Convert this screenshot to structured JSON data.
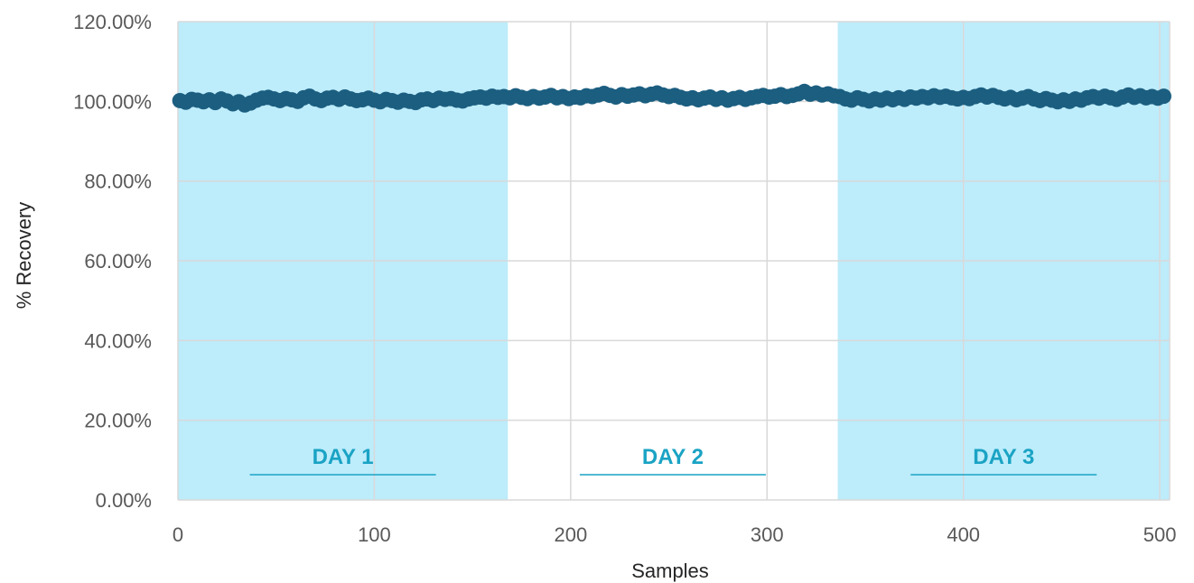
{
  "chart_data": {
    "type": "scatter",
    "title": "",
    "xlabel": "Samples",
    "ylabel": "% Recovery",
    "xlim": [
      0,
      505
    ],
    "ylim": [
      0,
      1.2
    ],
    "x_ticks": [
      0,
      100,
      200,
      300,
      400,
      500
    ],
    "x_tick_labels": [
      "0",
      "100",
      "200",
      "300",
      "400",
      "500"
    ],
    "y_ticks": [
      0,
      0.2,
      0.4,
      0.6,
      0.8,
      1.0,
      1.2
    ],
    "y_tick_labels": [
      "0.00%",
      "20.00%",
      "40.00%",
      "60.00%",
      "80.00%",
      "100.00%",
      "120.00%"
    ],
    "grid": true,
    "legend": "none",
    "bands": [
      {
        "label": "DAY 1",
        "x_start": 0,
        "x_end": 168,
        "shaded": true
      },
      {
        "label": "DAY 2",
        "x_start": 168,
        "x_end": 336,
        "shaded": false
      },
      {
        "label": "DAY 3",
        "x_start": 336,
        "x_end": 505,
        "shaded": true
      }
    ],
    "series": [
      {
        "values": [
          [
            1,
            1.002
          ],
          [
            4,
            0.998
          ],
          [
            7,
            1.005
          ],
          [
            10,
            1.003
          ],
          [
            13,
            0.999
          ],
          [
            16,
            1.004
          ],
          [
            19,
            0.997
          ],
          [
            22,
            1.006
          ],
          [
            25,
            1.001
          ],
          [
            28,
            0.994
          ],
          [
            31,
            0.999
          ],
          [
            34,
            0.991
          ],
          [
            37,
            0.996
          ],
          [
            40,
            1.003
          ],
          [
            43,
            1.008
          ],
          [
            46,
            1.01
          ],
          [
            49,
            1.006
          ],
          [
            52,
            1.002
          ],
          [
            55,
            1.007
          ],
          [
            58,
            1.004
          ],
          [
            61,
            1.0
          ],
          [
            64,
            1.009
          ],
          [
            67,
            1.013
          ],
          [
            70,
            1.006
          ],
          [
            73,
            1.002
          ],
          [
            76,
            1.008
          ],
          [
            79,
            1.01
          ],
          [
            82,
            1.005
          ],
          [
            85,
            1.011
          ],
          [
            88,
            1.006
          ],
          [
            91,
            1.002
          ],
          [
            94,
            1.004
          ],
          [
            97,
            1.008
          ],
          [
            100,
            1.003
          ],
          [
            103,
            0.999
          ],
          [
            106,
            1.005
          ],
          [
            109,
            1.002
          ],
          [
            112,
            0.998
          ],
          [
            115,
            1.003
          ],
          [
            118,
            1.0
          ],
          [
            121,
            0.997
          ],
          [
            124,
            1.004
          ],
          [
            127,
            1.006
          ],
          [
            130,
            1.002
          ],
          [
            133,
            1.008
          ],
          [
            136,
            1.005
          ],
          [
            139,
            1.007
          ],
          [
            142,
            1.003
          ],
          [
            145,
            1.001
          ],
          [
            148,
            1.006
          ],
          [
            151,
            1.009
          ],
          [
            154,
            1.011
          ],
          [
            157,
            1.008
          ],
          [
            160,
            1.013
          ],
          [
            163,
            1.01
          ],
          [
            166,
            1.012
          ],
          [
            169,
            1.009
          ],
          [
            172,
            1.014
          ],
          [
            175,
            1.01
          ],
          [
            178,
            1.007
          ],
          [
            181,
            1.012
          ],
          [
            184,
            1.008
          ],
          [
            187,
            1.011
          ],
          [
            190,
            1.015
          ],
          [
            193,
            1.009
          ],
          [
            196,
            1.012
          ],
          [
            199,
            1.007
          ],
          [
            202,
            1.011
          ],
          [
            205,
            1.009
          ],
          [
            208,
            1.014
          ],
          [
            211,
            1.012
          ],
          [
            214,
            1.016
          ],
          [
            217,
            1.02
          ],
          [
            220,
            1.015
          ],
          [
            223,
            1.011
          ],
          [
            226,
            1.017
          ],
          [
            229,
            1.013
          ],
          [
            232,
            1.016
          ],
          [
            235,
            1.019
          ],
          [
            238,
            1.014
          ],
          [
            241,
            1.018
          ],
          [
            244,
            1.021
          ],
          [
            247,
            1.016
          ],
          [
            250,
            1.012
          ],
          [
            253,
            1.015
          ],
          [
            256,
            1.01
          ],
          [
            259,
            1.006
          ],
          [
            262,
            1.009
          ],
          [
            265,
            1.004
          ],
          [
            268,
            1.008
          ],
          [
            271,
            1.011
          ],
          [
            274,
            1.005
          ],
          [
            277,
            1.009
          ],
          [
            280,
            1.003
          ],
          [
            283,
            1.007
          ],
          [
            286,
            1.01
          ],
          [
            289,
            1.005
          ],
          [
            292,
            1.009
          ],
          [
            295,
            1.012
          ],
          [
            298,
            1.015
          ],
          [
            301,
            1.011
          ],
          [
            304,
            1.013
          ],
          [
            307,
            1.017
          ],
          [
            310,
            1.012
          ],
          [
            313,
            1.015
          ],
          [
            316,
            1.019
          ],
          [
            319,
            1.025
          ],
          [
            322,
            1.018
          ],
          [
            325,
            1.021
          ],
          [
            328,
            1.016
          ],
          [
            331,
            1.019
          ],
          [
            334,
            1.014
          ],
          [
            337,
            1.012
          ],
          [
            340,
            1.006
          ],
          [
            343,
            1.003
          ],
          [
            346,
            1.009
          ],
          [
            349,
            1.005
          ],
          [
            352,
            1.001
          ],
          [
            355,
            1.006
          ],
          [
            358,
            1.003
          ],
          [
            361,
            1.008
          ],
          [
            364,
            1.004
          ],
          [
            367,
            1.009
          ],
          [
            370,
            1.005
          ],
          [
            373,
            1.011
          ],
          [
            376,
            1.008
          ],
          [
            379,
            1.012
          ],
          [
            382,
            1.009
          ],
          [
            385,
            1.014
          ],
          [
            388,
            1.01
          ],
          [
            391,
            1.013
          ],
          [
            394,
            1.009
          ],
          [
            397,
            1.006
          ],
          [
            400,
            1.01
          ],
          [
            403,
            1.007
          ],
          [
            406,
            1.012
          ],
          [
            409,
            1.016
          ],
          [
            412,
            1.011
          ],
          [
            415,
            1.015
          ],
          [
            418,
            1.01
          ],
          [
            421,
            1.006
          ],
          [
            424,
            1.01
          ],
          [
            427,
            1.004
          ],
          [
            430,
            1.008
          ],
          [
            433,
            1.012
          ],
          [
            436,
            1.006
          ],
          [
            439,
            1.002
          ],
          [
            442,
            1.007
          ],
          [
            445,
            1.003
          ],
          [
            448,
            0.999
          ],
          [
            451,
            1.004
          ],
          [
            454,
            1.0
          ],
          [
            457,
            1.006
          ],
          [
            460,
            1.003
          ],
          [
            463,
            1.009
          ],
          [
            466,
            1.012
          ],
          [
            469,
            1.008
          ],
          [
            472,
            1.013
          ],
          [
            475,
            1.009
          ],
          [
            478,
            1.005
          ],
          [
            481,
            1.011
          ],
          [
            484,
            1.016
          ],
          [
            487,
            1.01
          ],
          [
            490,
            1.014
          ],
          [
            493,
            1.009
          ],
          [
            496,
            1.012
          ],
          [
            499,
            1.008
          ],
          [
            502,
            1.013
          ]
        ]
      }
    ],
    "colors": {
      "band_fill": "#bdecfb",
      "band_label": "#1aa3c4",
      "point": "#1b5e80",
      "grid": "#d9d9d9"
    }
  }
}
